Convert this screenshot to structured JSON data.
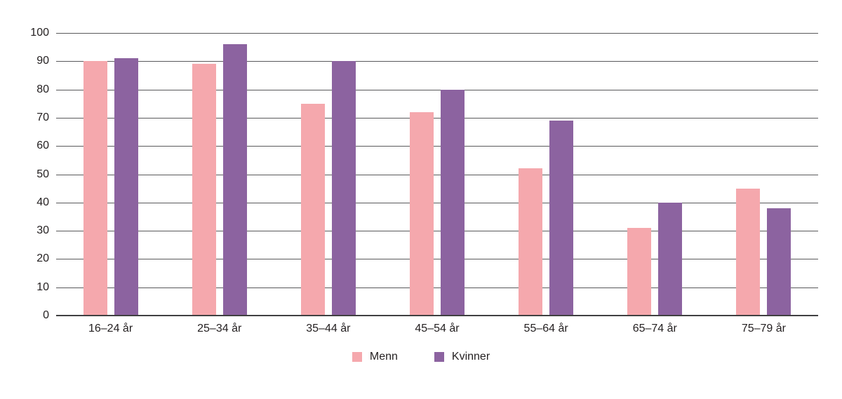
{
  "chart_data": {
    "type": "bar",
    "title": "",
    "xlabel": "",
    "ylabel": "",
    "categories": [
      "16–24 år",
      "25–34 år",
      "35–44 år",
      "45–54 år",
      "55–64 år",
      "65–74 år",
      "75–79 år"
    ],
    "series": [
      {
        "name": "Menn",
        "color": "#F5A8AD",
        "values": [
          90,
          89,
          75,
          72,
          52,
          31,
          45
        ]
      },
      {
        "name": "Kvinner",
        "color": "#8C63A0",
        "values": [
          91,
          96,
          90,
          80,
          69,
          40,
          38
        ]
      }
    ],
    "ylim": [
      0,
      100
    ],
    "yticks": [
      0,
      10,
      20,
      30,
      40,
      50,
      60,
      70,
      80,
      90,
      100
    ],
    "grid": true,
    "legend_position": "bottom"
  },
  "colors": {
    "background": "#FFFFFF",
    "gridline": "#59595B",
    "axis": "#404041",
    "text": "#231F20"
  }
}
